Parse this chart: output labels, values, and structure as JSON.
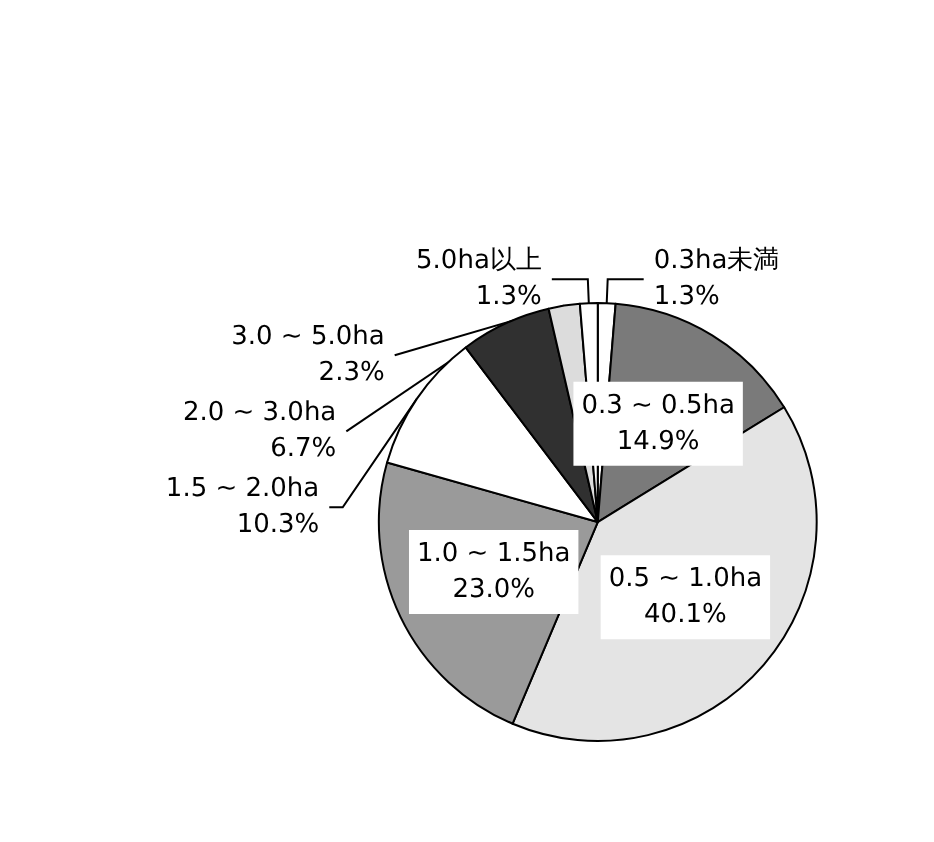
{
  "chart_data": {
    "type": "pie",
    "categories": [
      "0.3ha未満",
      "0.3 ~ 0.5ha",
      "0.5 ~ 1.0ha",
      "1.0 ~ 1.5ha",
      "1.5 ~ 2.0ha",
      "2.0 ~ 3.0ha",
      "3.0 ~ 5.0ha",
      "5.0ha以上"
    ],
    "values": [
      1.3,
      14.9,
      40.1,
      23.0,
      10.3,
      6.7,
      2.3,
      1.3
    ],
    "value_labels": [
      "1.3%",
      "14.9%",
      "40.1%",
      "23.0%",
      "10.3%",
      "6.7%",
      "2.3%",
      "1.3%"
    ],
    "colors": [
      "#ffffff",
      "#7a7a7a",
      "#e4e4e4",
      "#9a9a9a",
      "#ffffff",
      "#303030",
      "#dcdcdc",
      "#ffffff"
    ],
    "legend": false
  }
}
